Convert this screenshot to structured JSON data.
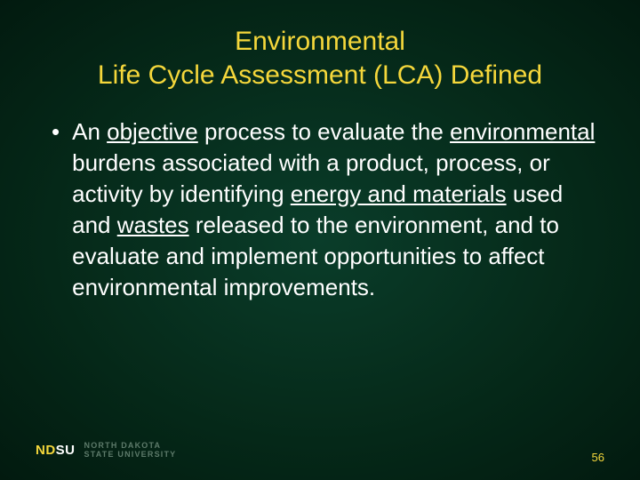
{
  "slide": {
    "background": {
      "gradient_center": "#0a3d2a",
      "gradient_mid": "#052818",
      "gradient_edge": "#021a0f"
    },
    "title": {
      "line1": "Environmental",
      "line2": "Life Cycle Assessment (LCA) Defined",
      "color": "#f5d73b",
      "fontsize": 30
    },
    "bullet": {
      "marker": "•",
      "segments": [
        {
          "text": "An ",
          "underline": false
        },
        {
          "text": "objective",
          "underline": true
        },
        {
          "text": " process to evaluate the ",
          "underline": false
        },
        {
          "text": "environmental",
          "underline": true
        },
        {
          "text": " burdens associated with a product, process, or activity by identifying ",
          "underline": false
        },
        {
          "text": "energy and materials",
          "underline": true
        },
        {
          "text": " used and ",
          "underline": false
        },
        {
          "text": "wastes",
          "underline": true
        },
        {
          "text": " released to the environment, and to evaluate and implement opportunities to affect environmental improvements.",
          "underline": false
        }
      ],
      "color": "#ffffff",
      "fontsize": 26
    },
    "footer": {
      "logo_mark": {
        "nd": "ND",
        "su": "SU"
      },
      "logo_full_line1": "NORTH DAKOTA",
      "logo_full_line2": "STATE UNIVERSITY",
      "page_number": "56",
      "page_number_color": "#f5d73b"
    }
  }
}
